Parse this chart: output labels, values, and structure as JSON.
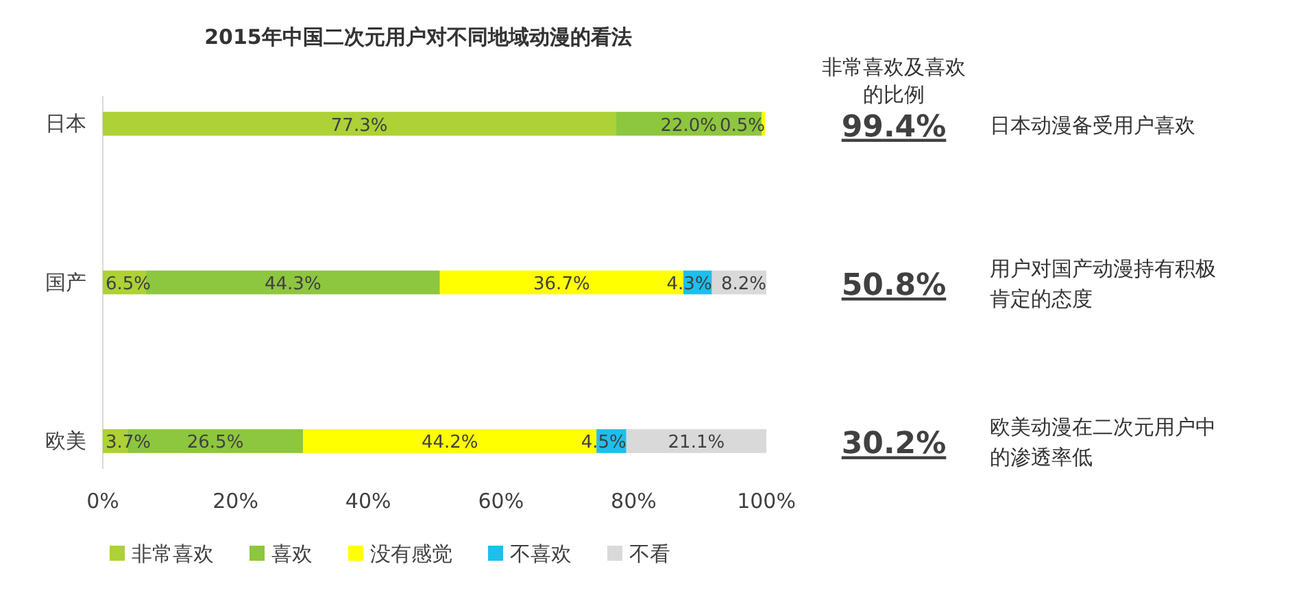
{
  "chart_data": {
    "type": "bar",
    "orientation": "horizontal",
    "stacked": true,
    "title": "2015年中国二次元用户对不同地域动漫的看法",
    "categories": [
      "日本",
      "国产",
      "欧美"
    ],
    "series": [
      {
        "name": "非常喜欢",
        "color": "#add136",
        "values": [
          77.3,
          6.5,
          3.7
        ],
        "value_labels": [
          "77.3%",
          "6.5%",
          "3.7%"
        ]
      },
      {
        "name": "喜欢",
        "color": "#8dc63f",
        "values": [
          22.0,
          44.3,
          26.5
        ],
        "value_labels": [
          "22.0%",
          "44.3%",
          "26.5%"
        ]
      },
      {
        "name": "没有感觉",
        "color": "#ffff00",
        "values": [
          0.5,
          36.7,
          44.2
        ],
        "value_labels": [
          "0.5%",
          "36.7%",
          "44.2%"
        ]
      },
      {
        "name": "不喜欢",
        "color": "#1dbfec",
        "values": [
          null,
          4.3,
          4.5
        ],
        "value_labels": [
          null,
          "4.3%",
          "4.5%"
        ]
      },
      {
        "name": "不看",
        "color": "#d9d9d9",
        "values": [
          null,
          8.2,
          21.1
        ],
        "value_labels": [
          null,
          "8.2%",
          "21.1%"
        ]
      }
    ],
    "xlim": [
      0,
      100
    ],
    "xticks": [
      {
        "value": 0,
        "label": "0%"
      },
      {
        "value": 20,
        "label": "20%"
      },
      {
        "value": 40,
        "label": "40%"
      },
      {
        "value": 60,
        "label": "60%"
      },
      {
        "value": 80,
        "label": "80%"
      },
      {
        "value": 100,
        "label": "100%"
      }
    ],
    "grid": false,
    "legend": "bottom",
    "annotations": [
      "非常喜欢及喜欢的比例",
      "99.4%",
      "日本动漫备受用户喜欢",
      "50.8%",
      "用户对国产动漫持有积极肯定的态度",
      "30.2%",
      "欧美动漫在二次元用户中的渗透率低"
    ]
  }
}
